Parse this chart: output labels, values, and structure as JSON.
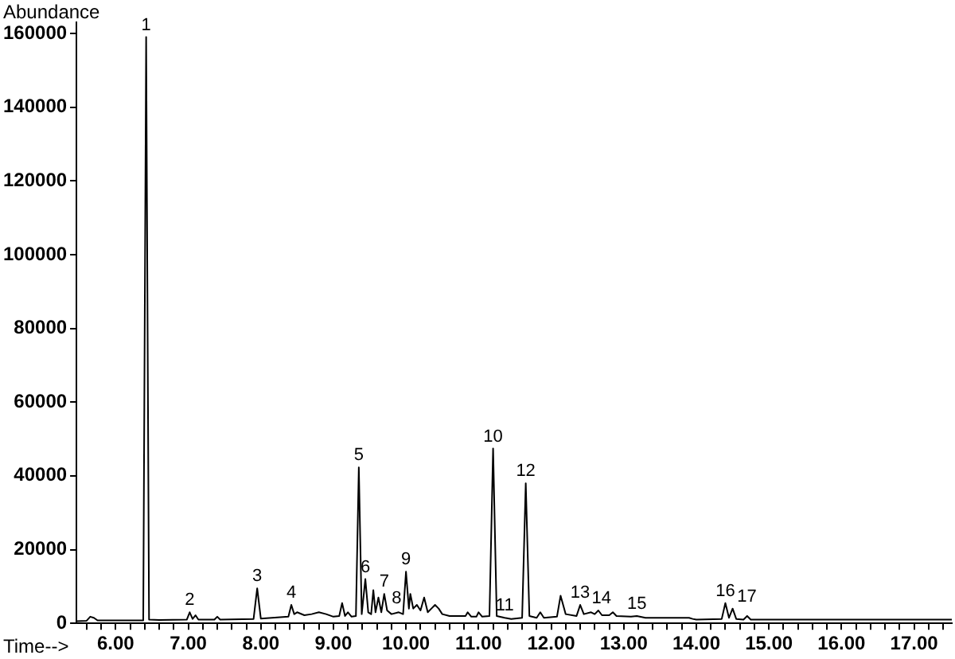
{
  "chart_data": {
    "type": "line",
    "xlabel": "Time-->",
    "ylabel": "Abundance",
    "x": [
      5.46,
      5.6,
      5.65,
      5.7,
      5.75,
      6.0,
      6.38,
      6.42,
      6.46,
      6.6,
      6.98,
      7.02,
      7.06,
      7.1,
      7.14,
      7.36,
      7.4,
      7.44,
      7.9,
      7.95,
      8.0,
      8.38,
      8.42,
      8.46,
      8.5,
      8.6,
      8.7,
      8.8,
      8.9,
      9.0,
      9.08,
      9.12,
      9.16,
      9.2,
      9.25,
      9.31,
      9.35,
      9.39,
      9.44,
      9.48,
      9.52,
      9.55,
      9.58,
      9.62,
      9.66,
      9.7,
      9.74,
      9.8,
      9.9,
      9.96,
      10.0,
      10.04,
      10.06,
      10.1,
      10.15,
      10.2,
      10.25,
      10.3,
      10.35,
      10.4,
      10.45,
      10.5,
      10.6,
      10.82,
      10.85,
      10.9,
      10.97,
      11.0,
      11.05,
      11.15,
      11.2,
      11.25,
      11.36,
      11.45,
      11.6,
      11.65,
      11.7,
      11.8,
      11.85,
      11.9,
      12.08,
      12.13,
      12.2,
      12.35,
      12.4,
      12.45,
      12.55,
      12.6,
      12.65,
      12.7,
      12.8,
      12.85,
      12.9,
      13.1,
      13.18,
      13.3,
      13.9,
      13.95,
      14.0,
      14.35,
      14.4,
      14.45,
      14.5,
      14.55,
      14.65,
      14.7,
      14.75,
      15.0,
      16.0,
      17.0,
      17.52
    ],
    "series": [
      {
        "color": "#000000",
        "values": [
          600,
          700,
          1800,
          1500,
          800,
          800,
          800,
          159000,
          1000,
          900,
          1000,
          3000,
          1200,
          2200,
          1000,
          1000,
          1800,
          1000,
          1200,
          9500,
          1300,
          1800,
          5000,
          2500,
          3000,
          2200,
          2500,
          3000,
          2500,
          1800,
          2000,
          5500,
          2000,
          3000,
          1800,
          2000,
          42300,
          2500,
          12000,
          3000,
          2500,
          9000,
          3000,
          7000,
          3000,
          8000,
          3500,
          2500,
          3000,
          2500,
          14000,
          4000,
          8000,
          4000,
          5000,
          3500,
          7000,
          3000,
          4000,
          5000,
          4000,
          2500,
          2000,
          2000,
          3000,
          1800,
          1800,
          3000,
          1800,
          2000,
          47400,
          2000,
          1500,
          1200,
          1500,
          38000,
          2000,
          1500,
          3000,
          1500,
          1800,
          7500,
          2500,
          2000,
          5000,
          2500,
          3000,
          2500,
          3500,
          2200,
          2200,
          3000,
          2000,
          1800,
          2000,
          1500,
          1500,
          1200,
          1000,
          1200,
          5500,
          1500,
          4000,
          1200,
          1000,
          2000,
          1000,
          1000,
          1000,
          1000,
          1000
        ]
      }
    ],
    "xlim": [
      5.46,
      17.52
    ],
    "ylim": [
      0,
      163000
    ],
    "xticks": [
      {
        "value": 5.6,
        "label": null
      },
      {
        "value": 5.8,
        "label": null
      },
      {
        "value": 6,
        "label": "6.00"
      },
      {
        "value": 6.2,
        "label": null
      },
      {
        "value": 6.4,
        "label": null
      },
      {
        "value": 6.6,
        "label": null
      },
      {
        "value": 6.8,
        "label": null
      },
      {
        "value": 7,
        "label": "7.00"
      },
      {
        "value": 7.2,
        "label": null
      },
      {
        "value": 7.4,
        "label": null
      },
      {
        "value": 7.6,
        "label": null
      },
      {
        "value": 7.8,
        "label": null
      },
      {
        "value": 8,
        "label": "8.00"
      },
      {
        "value": 8.2,
        "label": null
      },
      {
        "value": 8.4,
        "label": null
      },
      {
        "value": 8.6,
        "label": null
      },
      {
        "value": 8.8,
        "label": null
      },
      {
        "value": 9,
        "label": "9.00"
      },
      {
        "value": 9.2,
        "label": null
      },
      {
        "value": 9.4,
        "label": null
      },
      {
        "value": 9.6,
        "label": null
      },
      {
        "value": 9.8,
        "label": null
      },
      {
        "value": 10,
        "label": "10.00"
      },
      {
        "value": 10.2,
        "label": null
      },
      {
        "value": 10.4,
        "label": null
      },
      {
        "value": 10.6,
        "label": null
      },
      {
        "value": 10.8,
        "label": null
      },
      {
        "value": 11,
        "label": "11.00"
      },
      {
        "value": 11.2,
        "label": null
      },
      {
        "value": 11.4,
        "label": null
      },
      {
        "value": 11.6,
        "label": null
      },
      {
        "value": 11.8,
        "label": null
      },
      {
        "value": 12,
        "label": "12.00"
      },
      {
        "value": 12.2,
        "label": null
      },
      {
        "value": 12.4,
        "label": null
      },
      {
        "value": 12.6,
        "label": null
      },
      {
        "value": 12.8,
        "label": null
      },
      {
        "value": 13,
        "label": "13.00"
      },
      {
        "value": 13.2,
        "label": null
      },
      {
        "value": 13.4,
        "label": null
      },
      {
        "value": 13.6,
        "label": null
      },
      {
        "value": 13.8,
        "label": null
      },
      {
        "value": 14,
        "label": "14.00"
      },
      {
        "value": 14.2,
        "label": null
      },
      {
        "value": 14.4,
        "label": null
      },
      {
        "value": 14.6,
        "label": null
      },
      {
        "value": 14.8,
        "label": null
      },
      {
        "value": 15,
        "label": "15.00"
      },
      {
        "value": 15.2,
        "label": null
      },
      {
        "value": 15.4,
        "label": null
      },
      {
        "value": 15.6,
        "label": null
      },
      {
        "value": 15.8,
        "label": null
      },
      {
        "value": 16,
        "label": "16.00"
      },
      {
        "value": 16.2,
        "label": null
      },
      {
        "value": 16.4,
        "label": null
      },
      {
        "value": 16.6,
        "label": null
      },
      {
        "value": 16.8,
        "label": null
      },
      {
        "value": 17,
        "label": "17.00"
      },
      {
        "value": 17.2,
        "label": null
      },
      {
        "value": 17.4,
        "label": null
      }
    ],
    "yticks": [
      0,
      20000,
      40000,
      60000,
      80000,
      100000,
      120000,
      140000,
      160000
    ],
    "annotations": [
      {
        "text": "1",
        "x": 6.42,
        "y": 159000
      },
      {
        "text": "2",
        "x": 7.02,
        "y": 3000
      },
      {
        "text": "3",
        "x": 7.95,
        "y": 9500
      },
      {
        "text": "4",
        "x": 8.42,
        "y": 5000
      },
      {
        "text": "5",
        "x": 9.35,
        "y": 42300
      },
      {
        "text": "6",
        "x": 9.44,
        "y": 12000
      },
      {
        "text": "7",
        "x": 9.7,
        "y": 8000
      },
      {
        "text": "8",
        "x": 9.74,
        "y": 3500
      },
      {
        "text": "9",
        "x": 10.0,
        "y": 14000
      },
      {
        "text": "10",
        "x": 11.2,
        "y": 47400
      },
      {
        "text": "11",
        "x": 11.36,
        "y": 1500
      },
      {
        "text": "12",
        "x": 11.65,
        "y": 38000
      },
      {
        "text": "13",
        "x": 12.4,
        "y": 5000
      },
      {
        "text": "14",
        "x": 12.65,
        "y": 3500
      },
      {
        "text": "15",
        "x": 13.18,
        "y": 2000
      },
      {
        "text": "16",
        "x": 14.4,
        "y": 5500
      },
      {
        "text": "17",
        "x": 14.5,
        "y": 4000
      }
    ],
    "grid": false,
    "legend": false,
    "marker": "none",
    "line_style": "solid"
  }
}
